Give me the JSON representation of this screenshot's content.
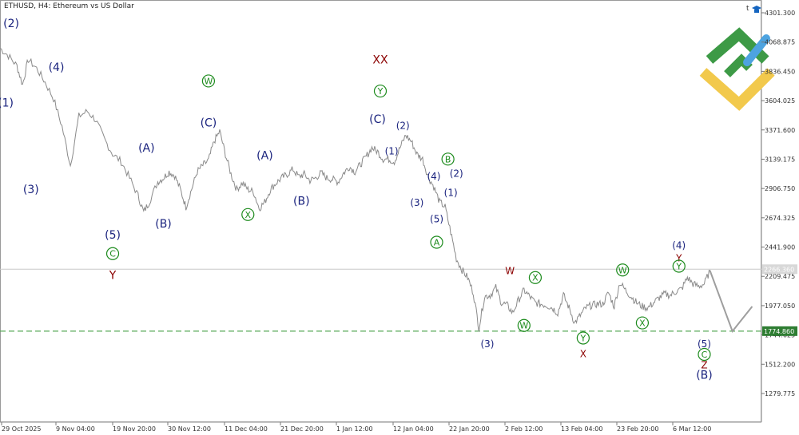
{
  "chart_data": {
    "type": "line",
    "title": "ETHUSD, H4:  Ethereum vs US Dollar",
    "symbol_icon": "t",
    "y_ticks": [
      "4301.300",
      "4068.875",
      "3836.450",
      "3604.025",
      "3371.600",
      "3139.175",
      "2906.750",
      "2674.325",
      "2441.900",
      "2209.475",
      "1977.050",
      "1744.625",
      "1512.200",
      "1279.775"
    ],
    "y_tick_values": [
      4301.3,
      4068.875,
      3836.45,
      3604.025,
      3371.6,
      3139.175,
      2906.75,
      2674.325,
      2441.9,
      2209.475,
      1977.05,
      1744.625,
      1512.2,
      1279.775
    ],
    "x_ticks": [
      "29 Oct 2025",
      "9 Nov 04:00",
      "19 Nov 20:00",
      "30 Nov 12:00",
      "11 Dec 04:00",
      "21 Dec 20:00",
      "1 Jan 12:00",
      "12 Jan 04:00",
      "22 Jan 20:00",
      "2 Feb 12:00",
      "13 Feb 04:00",
      "23 Feb 20:00",
      "6 Mar 12:00"
    ],
    "current_price_label": "2266.360",
    "current_price": 2266.36,
    "support_price_label": "1774.860",
    "support_price": 1774.86,
    "price_path": [
      [
        0,
        4020
      ],
      [
        3,
        3960
      ],
      [
        6,
        3880
      ],
      [
        8,
        3730
      ],
      [
        10,
        3930
      ],
      [
        13,
        3860
      ],
      [
        16,
        3750
      ],
      [
        19,
        3620
      ],
      [
        22,
        3400
      ],
      [
        25,
        3090
      ],
      [
        28,
        3480
      ],
      [
        31,
        3520
      ],
      [
        34,
        3450
      ],
      [
        37,
        3300
      ],
      [
        40,
        3180
      ],
      [
        43,
        3120
      ],
      [
        46,
        2990
      ],
      [
        49,
        2850
      ],
      [
        51,
        2720
      ],
      [
        53,
        2800
      ],
      [
        56,
        2960
      ],
      [
        58,
        2990
      ],
      [
        60,
        3040
      ],
      [
        62,
        3010
      ],
      [
        64,
        2900
      ],
      [
        66,
        2760
      ],
      [
        68,
        2900
      ],
      [
        70,
        3040
      ],
      [
        72,
        3090
      ],
      [
        74,
        3130
      ],
      [
        76,
        3280
      ],
      [
        78,
        3360
      ],
      [
        80,
        3180
      ],
      [
        82,
        3020
      ],
      [
        84,
        2900
      ],
      [
        86,
        2950
      ],
      [
        88,
        2900
      ],
      [
        90,
        2880
      ],
      [
        92,
        2750
      ],
      [
        94,
        2800
      ],
      [
        96,
        2900
      ],
      [
        98,
        2950
      ],
      [
        100,
        2990
      ],
      [
        102,
        3020
      ],
      [
        104,
        3060
      ],
      [
        106,
        3000
      ],
      [
        108,
        3020
      ],
      [
        110,
        2970
      ],
      [
        112,
        2990
      ],
      [
        114,
        3030
      ],
      [
        116,
        2990
      ],
      [
        118,
        2980
      ],
      [
        120,
        2960
      ],
      [
        122,
        3030
      ],
      [
        124,
        3080
      ],
      [
        126,
        3040
      ],
      [
        128,
        3100
      ],
      [
        130,
        3160
      ],
      [
        132,
        3230
      ],
      [
        134,
        3200
      ],
      [
        136,
        3140
      ],
      [
        138,
        3140
      ],
      [
        140,
        3120
      ],
      [
        142,
        3230
      ],
      [
        144,
        3330
      ],
      [
        146,
        3280
      ],
      [
        148,
        3180
      ],
      [
        150,
        3140
      ],
      [
        152,
        3000
      ],
      [
        154,
        2920
      ],
      [
        156,
        2800
      ],
      [
        158,
        2760
      ],
      [
        160,
        2560
      ],
      [
        162,
        2350
      ],
      [
        164,
        2260
      ],
      [
        166,
        2200
      ],
      [
        168,
        2080
      ],
      [
        170,
        1800
      ],
      [
        172,
        2050
      ],
      [
        174,
        2060
      ],
      [
        176,
        2120
      ],
      [
        178,
        2000
      ],
      [
        180,
        1980
      ],
      [
        182,
        1920
      ],
      [
        184,
        2020
      ],
      [
        186,
        2100
      ],
      [
        188,
        2050
      ],
      [
        190,
        2000
      ],
      [
        192,
        1990
      ],
      [
        194,
        1980
      ],
      [
        196,
        1960
      ],
      [
        198,
        1920
      ],
      [
        200,
        2060
      ],
      [
        202,
        1960
      ],
      [
        204,
        1840
      ],
      [
        206,
        1900
      ],
      [
        208,
        1960
      ],
      [
        210,
        1980
      ],
      [
        212,
        1990
      ],
      [
        214,
        1990
      ],
      [
        216,
        2080
      ],
      [
        218,
        1970
      ],
      [
        220,
        2160
      ],
      [
        222,
        2100
      ],
      [
        224,
        2050
      ],
      [
        226,
        2000
      ],
      [
        228,
        1970
      ],
      [
        230,
        1960
      ],
      [
        232,
        2000
      ],
      [
        234,
        2040
      ],
      [
        236,
        2070
      ],
      [
        238,
        2060
      ],
      [
        240,
        2090
      ],
      [
        242,
        2110
      ],
      [
        244,
        2200
      ],
      [
        246,
        2150
      ],
      [
        248,
        2130
      ],
      [
        250,
        2150
      ],
      [
        252,
        2256
      ]
    ],
    "projection": [
      [
        252,
        2256
      ],
      [
        260,
        1774
      ],
      [
        267,
        1970
      ]
    ],
    "wave_labels": [
      {
        "t": "(2)",
        "style": "blue",
        "x": 4,
        "p": 4220
      },
      {
        "t": "(1)",
        "style": "blue",
        "x": 2,
        "p": 3590
      },
      {
        "t": "(3)",
        "style": "blue",
        "x": 11,
        "p": 2900
      },
      {
        "t": "(4)",
        "style": "blue",
        "x": 20,
        "p": 3870
      },
      {
        "t": "(5)",
        "style": "blue",
        "x": 40,
        "p": 2540
      },
      {
        "t": "C",
        "style": "green-circle",
        "x": 40,
        "p": 2390
      },
      {
        "t": "Y",
        "style": "red",
        "x": 40,
        "p": 2220
      },
      {
        "t": "(A)",
        "style": "blue",
        "x": 52,
        "p": 3230
      },
      {
        "t": "(B)",
        "style": "blue",
        "x": 58,
        "p": 2630
      },
      {
        "t": "W",
        "style": "green-circle",
        "x": 74,
        "p": 3760
      },
      {
        "t": "(C)",
        "style": "blue",
        "x": 74,
        "p": 3430
      },
      {
        "t": "X",
        "style": "green-circle",
        "x": 88,
        "p": 2700
      },
      {
        "t": "(A)",
        "style": "blue",
        "x": 94,
        "p": 3170
      },
      {
        "t": "(B)",
        "style": "blue",
        "x": 107,
        "p": 2810
      },
      {
        "t": "XX",
        "style": "red",
        "x": 135,
        "p": 3930
      },
      {
        "t": "Y",
        "style": "green-circle",
        "x": 135,
        "p": 3680
      },
      {
        "t": "(C)",
        "style": "blue",
        "x": 134,
        "p": 3460
      },
      {
        "t": "(2)",
        "style": "blue-sm",
        "x": 143,
        "p": 3410
      },
      {
        "t": "(1)",
        "style": "blue-sm",
        "x": 139,
        "p": 3210
      },
      {
        "t": "(4)",
        "style": "blue-sm",
        "x": 154,
        "p": 3010
      },
      {
        "t": "(3)",
        "style": "blue-sm",
        "x": 148,
        "p": 2800
      },
      {
        "t": "(5)",
        "style": "blue-sm",
        "x": 155,
        "p": 2670
      },
      {
        "t": "B",
        "style": "green-circle",
        "x": 159,
        "p": 3140
      },
      {
        "t": "(2)",
        "style": "blue-sm",
        "x": 162,
        "p": 3030
      },
      {
        "t": "(1)",
        "style": "blue-sm",
        "x": 160,
        "p": 2880
      },
      {
        "t": "A",
        "style": "green-circle",
        "x": 155,
        "p": 2480
      },
      {
        "t": "(3)",
        "style": "blue-sm",
        "x": 173,
        "p": 1680
      },
      {
        "t": "W",
        "style": "red-sm",
        "x": 181,
        "p": 2260
      },
      {
        "t": "X",
        "style": "green-circle",
        "x": 190,
        "p": 2200
      },
      {
        "t": "W",
        "style": "green-circle",
        "x": 186,
        "p": 1820
      },
      {
        "t": "Y",
        "style": "green-circle",
        "x": 207,
        "p": 1720
      },
      {
        "t": "X",
        "style": "red-sm",
        "x": 207,
        "p": 1600
      },
      {
        "t": "W",
        "style": "green-circle",
        "x": 221,
        "p": 2260
      },
      {
        "t": "X",
        "style": "green-circle",
        "x": 228,
        "p": 1840
      },
      {
        "t": "(4)",
        "style": "blue-sm",
        "x": 241,
        "p": 2460
      },
      {
        "t": "Y",
        "style": "red-sm",
        "x": 241,
        "p": 2360
      },
      {
        "t": "Y",
        "style": "green-circle",
        "x": 241,
        "p": 2290
      },
      {
        "t": "(5)",
        "style": "blue-sm",
        "x": 250,
        "p": 1680
      },
      {
        "t": "C",
        "style": "green-circle",
        "x": 250,
        "p": 1590
      },
      {
        "t": "Z",
        "style": "red-sm",
        "x": 250,
        "p": 1510
      },
      {
        "t": "(B)",
        "style": "blue",
        "x": 250,
        "p": 1430
      }
    ]
  },
  "colors": {
    "price": "#8a8a8a",
    "blue": "#1a237e",
    "green": "#1b8a1b",
    "red": "#8b0000",
    "support": "#5aaa5a",
    "current_line": "#c8c8c8",
    "logo_green": "#3d9a46",
    "logo_yellow": "#f2c94c",
    "logo_blue": "#4da3e0"
  },
  "logo": "brand-logo"
}
